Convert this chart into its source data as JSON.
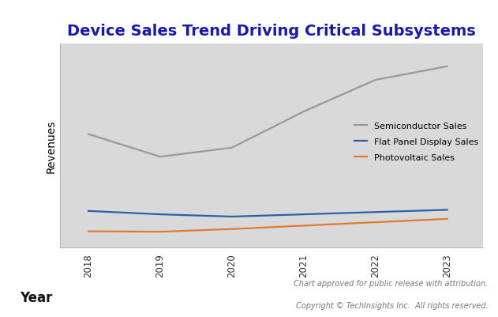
{
  "title": "Device Sales Trend Driving Critical Subsystems",
  "title_color": "#1a1aaa",
  "title_fontsize": 14,
  "xlabel": "Year",
  "ylabel": "Revenues",
  "xlabel_fontsize": 12,
  "ylabel_fontsize": 10,
  "background_color": "#d9d9d9",
  "outer_background": "#ffffff",
  "years": [
    2018,
    2019,
    2020,
    2021,
    2022,
    2023
  ],
  "semiconductor": [
    0.62,
    0.52,
    0.56,
    0.72,
    0.86,
    0.92
  ],
  "flat_panel": [
    0.28,
    0.265,
    0.255,
    0.265,
    0.275,
    0.285
  ],
  "photovoltaic": [
    0.19,
    0.188,
    0.2,
    0.215,
    0.23,
    0.245
  ],
  "semi_color": "#999999",
  "flat_color": "#2c5fa8",
  "photo_color": "#e07b30",
  "legend_labels": [
    "Semiconductor Sales",
    "Flat Panel Display Sales",
    "Photovoltaic Sales"
  ],
  "footnote1": "Chart approved for public release with attribution.",
  "footnote2": "Copyright © TechInsights Inc.  All rights reserved.",
  "footnote_fontsize": 7.0,
  "footnote_color": "#777777"
}
